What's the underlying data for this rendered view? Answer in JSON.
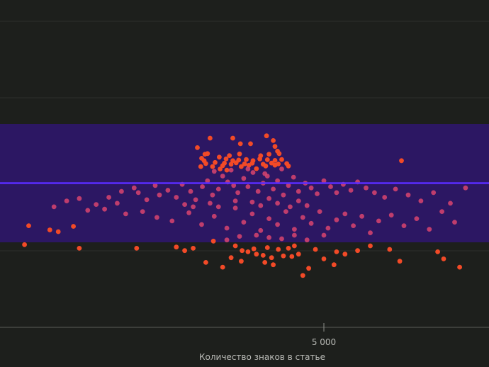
{
  "chart_data": {
    "type": "scatter",
    "title": "",
    "xlabel": "Количество знаков в статье",
    "ylabel": "",
    "grid": true,
    "x_ticks": [
      {
        "value": 5000,
        "label": "5 000"
      }
    ],
    "band": {
      "color": "#2c1763",
      "center_line_color": "#5a2cff"
    },
    "colors": {
      "outside": "#f24a27",
      "inside": "#d9446e",
      "grid": "#2d2f2b",
      "axis": "#5b5d59"
    },
    "series": [
      {
        "group": "outside",
        "points": [
          [
            3650,
            0.88
          ],
          [
            3920,
            0.88
          ],
          [
            4320,
            0.9
          ],
          [
            4400,
            0.86
          ],
          [
            4010,
            0.833
          ],
          [
            4130,
            0.833
          ],
          [
            4420,
            0.81
          ],
          [
            4450,
            0.77
          ],
          [
            3500,
            0.8
          ],
          [
            3590,
            0.745
          ],
          [
            3620,
            0.75
          ],
          [
            3880,
            0.733
          ],
          [
            4000,
            0.747
          ],
          [
            4250,
            0.732
          ],
          [
            4350,
            0.745
          ],
          [
            4470,
            0.75
          ],
          [
            3550,
            0.71
          ],
          [
            3760,
            0.72
          ],
          [
            3840,
            0.705
          ],
          [
            3920,
            0.69
          ],
          [
            3990,
            0.695
          ],
          [
            4080,
            0.7
          ],
          [
            4160,
            0.69
          ],
          [
            4240,
            0.705
          ],
          [
            4330,
            0.698
          ],
          [
            4420,
            0.692
          ],
          [
            4500,
            0.7
          ],
          [
            3600,
            0.665
          ],
          [
            3710,
            0.675
          ],
          [
            3820,
            0.668
          ],
          [
            3900,
            0.66
          ],
          [
            3960,
            0.672
          ],
          [
            4060,
            0.663
          ],
          [
            4150,
            0.668
          ],
          [
            4280,
            0.66
          ],
          [
            4380,
            0.67
          ],
          [
            4460,
            0.662
          ],
          [
            4560,
            0.665
          ],
          [
            3680,
            0.64
          ],
          [
            3800,
            0.648
          ],
          [
            4020,
            0.64
          ],
          [
            4110,
            0.65
          ],
          [
            4310,
            0.645
          ],
          [
            4420,
            0.652
          ],
          [
            4580,
            0.645
          ],
          [
            5920,
            0.69
          ],
          [
            3540,
            0.64
          ],
          [
            3770,
            0.62
          ],
          [
            3580,
            0.69
          ],
          [
            3850,
            0.61
          ],
          [
            4200,
            0.622
          ],
          [
            1500,
            0.14
          ],
          [
            1750,
            0.105
          ],
          [
            2030,
            0.135
          ],
          [
            1850,
            0.09
          ],
          [
            1450,
            -0.02
          ],
          [
            2100,
            -0.05
          ],
          [
            2780,
            -0.05
          ],
          [
            3350,
            -0.07
          ],
          [
            3450,
            -0.05
          ],
          [
            4030,
            -0.07
          ],
          [
            4170,
            -0.055
          ],
          [
            4330,
            -0.045
          ],
          [
            4460,
            -0.06
          ],
          [
            4580,
            -0.05
          ],
          [
            4100,
            -0.08
          ],
          [
            4200,
            -0.1
          ],
          [
            4280,
            -0.11
          ],
          [
            4380,
            -0.13
          ],
          [
            4520,
            -0.115
          ],
          [
            4620,
            -0.12
          ],
          [
            4700,
            -0.1
          ],
          [
            5150,
            -0.08
          ],
          [
            5250,
            -0.1
          ],
          [
            5400,
            -0.07
          ],
          [
            3900,
            -0.13
          ],
          [
            4020,
            -0.16
          ],
          [
            4300,
            -0.17
          ],
          [
            4400,
            -0.19
          ],
          [
            3600,
            -0.17
          ],
          [
            3800,
            -0.21
          ],
          [
            5000,
            -0.14
          ],
          [
            5120,
            -0.19
          ],
          [
            4820,
            -0.22
          ],
          [
            4750,
            -0.28
          ],
          [
            5780,
            -0.06
          ],
          [
            6350,
            -0.08
          ],
          [
            6420,
            -0.14
          ],
          [
            6610,
            -0.21
          ],
          [
            5900,
            -0.16
          ],
          [
            5550,
            -0.03
          ],
          [
            4900,
            -0.06
          ],
          [
            4650,
            -0.03
          ],
          [
            3250,
            -0.04
          ],
          [
            3690,
            0.01
          ],
          [
            3950,
            -0.03
          ]
        ]
      },
      {
        "group": "inside",
        "points": [
          [
            1800,
            0.3
          ],
          [
            1950,
            0.35
          ],
          [
            2100,
            0.37
          ],
          [
            2300,
            0.32
          ],
          [
            2450,
            0.38
          ],
          [
            2550,
            0.33
          ],
          [
            2600,
            0.43
          ],
          [
            2750,
            0.46
          ],
          [
            2800,
            0.42
          ],
          [
            2900,
            0.36
          ],
          [
            3000,
            0.48
          ],
          [
            3050,
            0.4
          ],
          [
            3150,
            0.44
          ],
          [
            3250,
            0.38
          ],
          [
            3320,
            0.49
          ],
          [
            3420,
            0.43
          ],
          [
            3480,
            0.36
          ],
          [
            3560,
            0.47
          ],
          [
            3620,
            0.52
          ],
          [
            3680,
            0.4
          ],
          [
            3750,
            0.45
          ],
          [
            3800,
            0.56
          ],
          [
            3860,
            0.51
          ],
          [
            3930,
            0.48
          ],
          [
            3980,
            0.42
          ],
          [
            4050,
            0.54
          ],
          [
            4100,
            0.47
          ],
          [
            4160,
            0.59
          ],
          [
            4220,
            0.43
          ],
          [
            4280,
            0.5
          ],
          [
            4330,
            0.56
          ],
          [
            4400,
            0.45
          ],
          [
            4450,
            0.52
          ],
          [
            4520,
            0.4
          ],
          [
            4580,
            0.48
          ],
          [
            4640,
            0.55
          ],
          [
            4700,
            0.43
          ],
          [
            4780,
            0.5
          ],
          [
            4850,
            0.46
          ],
          [
            4920,
            0.41
          ],
          [
            5000,
            0.52
          ],
          [
            5080,
            0.47
          ],
          [
            5150,
            0.42
          ],
          [
            5230,
            0.49
          ],
          [
            5320,
            0.44
          ],
          [
            5400,
            0.51
          ],
          [
            5500,
            0.46
          ],
          [
            5600,
            0.42
          ],
          [
            5720,
            0.38
          ],
          [
            5850,
            0.45
          ],
          [
            6000,
            0.4
          ],
          [
            6150,
            0.35
          ],
          [
            6300,
            0.42
          ],
          [
            6500,
            0.33
          ],
          [
            6680,
            0.46
          ],
          [
            3020,
            0.21
          ],
          [
            3200,
            0.18
          ],
          [
            3400,
            0.25
          ],
          [
            3550,
            0.15
          ],
          [
            3700,
            0.22
          ],
          [
            3850,
            0.12
          ],
          [
            3950,
            0.29
          ],
          [
            4050,
            0.17
          ],
          [
            4150,
            0.24
          ],
          [
            4250,
            0.1
          ],
          [
            4350,
            0.2
          ],
          [
            4450,
            0.15
          ],
          [
            4550,
            0.26
          ],
          [
            4650,
            0.11
          ],
          [
            4750,
            0.21
          ],
          [
            4850,
            0.16
          ],
          [
            4950,
            0.26
          ],
          [
            5050,
            0.12
          ],
          [
            5150,
            0.19
          ],
          [
            5250,
            0.24
          ],
          [
            5350,
            0.14
          ],
          [
            5450,
            0.22
          ],
          [
            5550,
            0.08
          ],
          [
            5650,
            0.18
          ],
          [
            5800,
            0.23
          ],
          [
            5950,
            0.14
          ],
          [
            6100,
            0.2
          ],
          [
            6250,
            0.11
          ],
          [
            6400,
            0.26
          ],
          [
            6550,
            0.17
          ],
          [
            3850,
            0.02
          ],
          [
            4000,
            0.05
          ],
          [
            4200,
            0.06
          ],
          [
            4350,
            0.04
          ],
          [
            4500,
            0.03
          ],
          [
            4650,
            0.06
          ],
          [
            4800,
            0.02
          ],
          [
            5000,
            0.06
          ],
          [
            4300,
            0.58
          ],
          [
            4500,
            0.62
          ],
          [
            3700,
            0.6
          ],
          [
            3900,
            0.61
          ],
          [
            4100,
            0.62
          ],
          [
            3650,
            0.33
          ],
          [
            3750,
            0.3
          ],
          [
            3950,
            0.35
          ],
          [
            4150,
            0.34
          ],
          [
            4250,
            0.31
          ],
          [
            4350,
            0.37
          ],
          [
            4450,
            0.33
          ],
          [
            4600,
            0.3
          ],
          [
            4700,
            0.35
          ],
          [
            4800,
            0.31
          ],
          [
            3450,
            0.3
          ],
          [
            3350,
            0.32
          ],
          [
            2850,
            0.26
          ],
          [
            2650,
            0.24
          ],
          [
            2400,
            0.28
          ],
          [
            2200,
            0.27
          ]
        ]
      }
    ]
  }
}
